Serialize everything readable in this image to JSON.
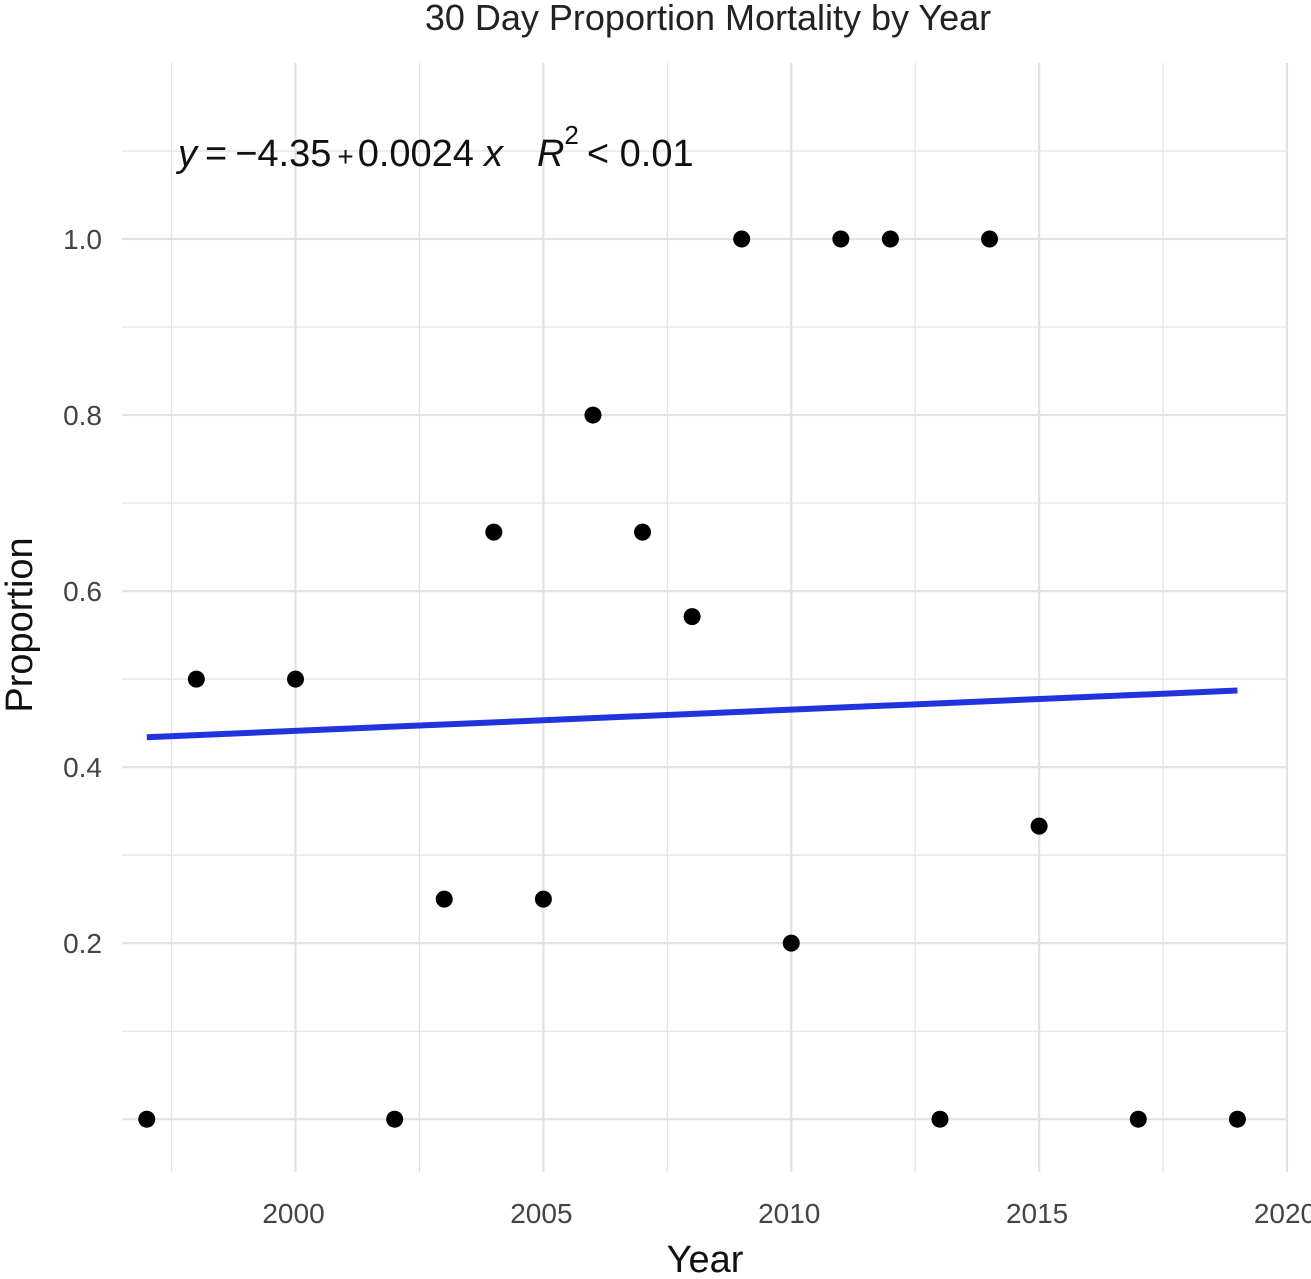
{
  "chart_data": {
    "type": "scatter",
    "title": "30 Day Proportion Mortality by Year",
    "xlabel": "Year",
    "ylabel": "Proportion",
    "xlim": [
      1996.5,
      2020
    ],
    "ylim": [
      -0.06,
      1.2
    ],
    "x_ticks": [
      2000,
      2005,
      2010,
      2015,
      2020
    ],
    "x_tick_labels": [
      "2000",
      "2005",
      "2010",
      "2015",
      "2020"
    ],
    "y_ticks": [
      0.2,
      0.4,
      0.6,
      0.8,
      1.0
    ],
    "y_tick_labels": [
      "0.2",
      "0.4",
      "0.6",
      "0.8",
      "1.0"
    ],
    "grid": true,
    "points": [
      {
        "x": 1997,
        "y": 0.0
      },
      {
        "x": 1998,
        "y": 0.5
      },
      {
        "x": 2000,
        "y": 0.5
      },
      {
        "x": 2002,
        "y": 0.0
      },
      {
        "x": 2003,
        "y": 0.25
      },
      {
        "x": 2004,
        "y": 0.667
      },
      {
        "x": 2005,
        "y": 0.25
      },
      {
        "x": 2006,
        "y": 0.8
      },
      {
        "x": 2007,
        "y": 0.667
      },
      {
        "x": 2008,
        "y": 0.571
      },
      {
        "x": 2009,
        "y": 1.0
      },
      {
        "x": 2010,
        "y": 0.2
      },
      {
        "x": 2011,
        "y": 1.0
      },
      {
        "x": 2012,
        "y": 1.0
      },
      {
        "x": 2013,
        "y": 0.0
      },
      {
        "x": 2014,
        "y": 1.0
      },
      {
        "x": 2015,
        "y": 0.333
      },
      {
        "x": 2017,
        "y": 0.0
      },
      {
        "x": 2019,
        "y": 0.0
      }
    ],
    "regression_line": {
      "x": [
        1997,
        2019
      ],
      "y": [
        0.434,
        0.487
      ],
      "color": "#2233dd"
    },
    "annotation": {
      "y_var": "y",
      "equals": "=",
      "intercept": "−4.35",
      "plus": "+",
      "slope": "0.0024",
      "x_var": "x",
      "r_symbol": "R",
      "r_exp": "2",
      "r_rel": "< 0.01"
    },
    "point_color": "#000000",
    "grid_color": "#e2e2e2"
  }
}
